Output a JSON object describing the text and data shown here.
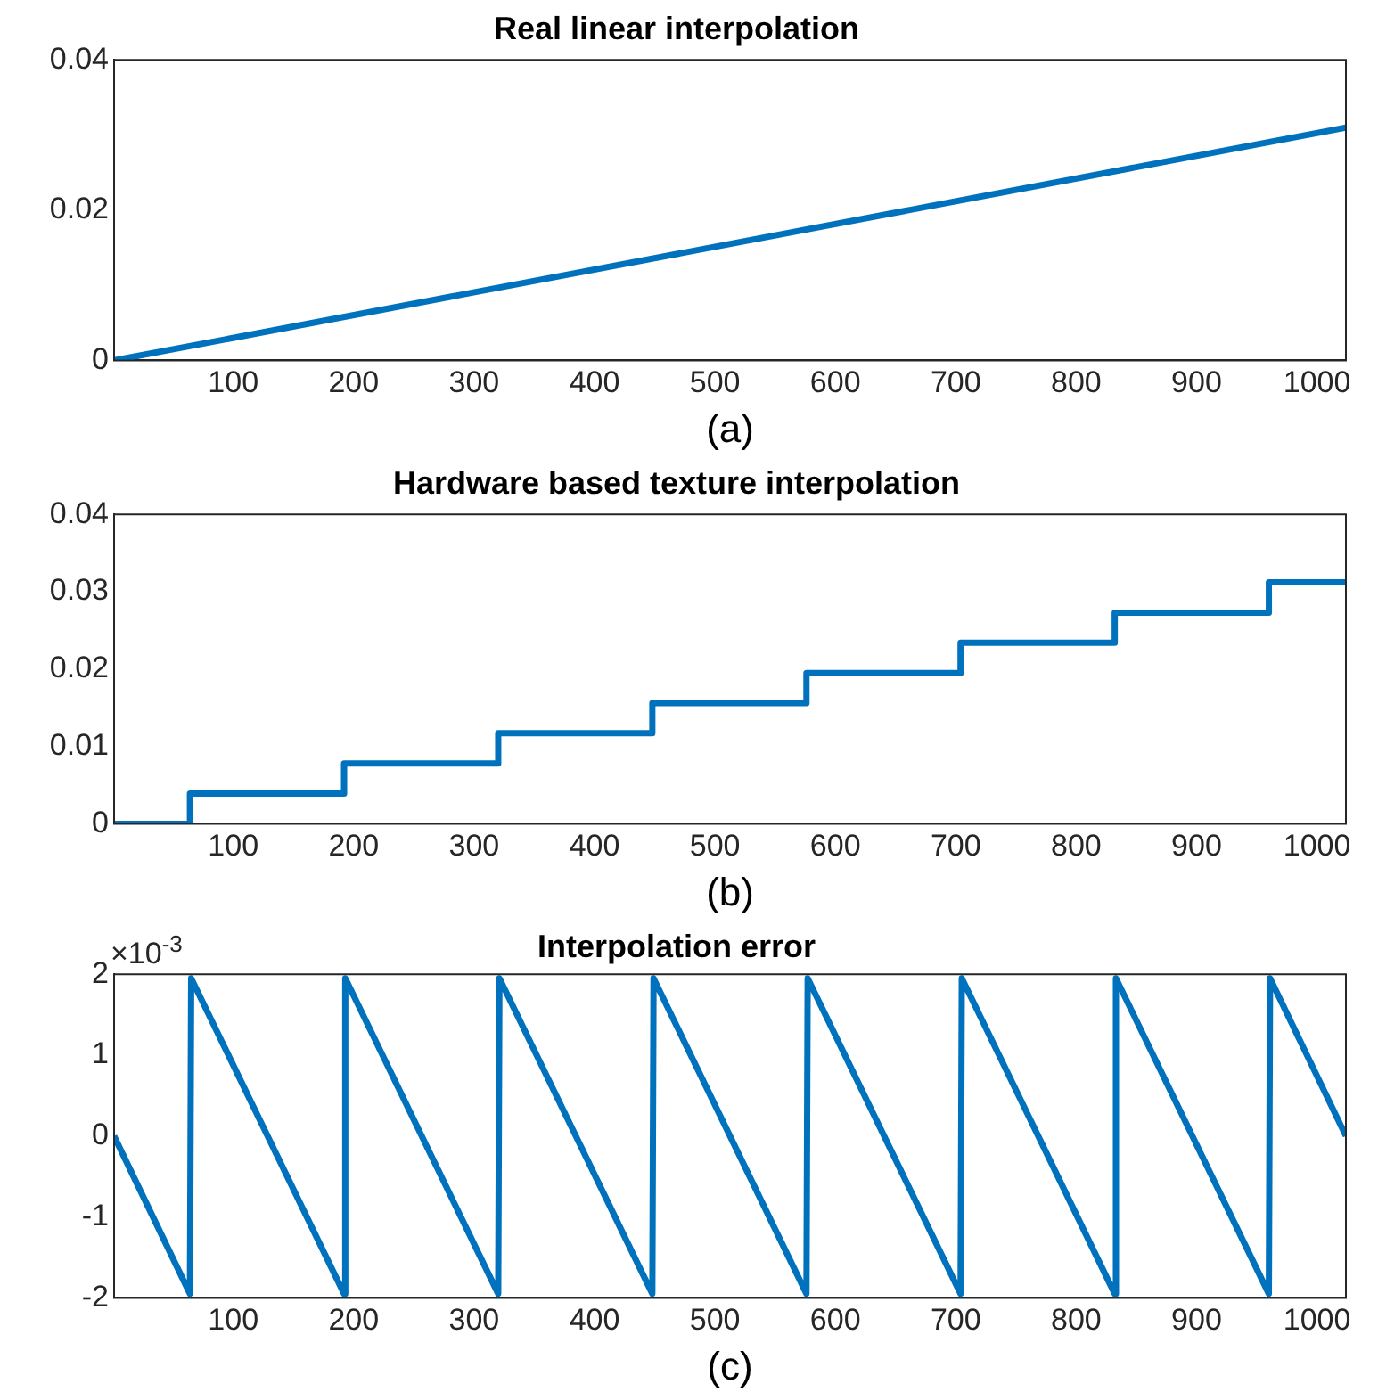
{
  "chart_data": [
    {
      "type": "line",
      "title": "Real linear interpolation",
      "xlabel": "(a)",
      "x": [
        1,
        1024
      ],
      "series": [
        {
          "color": "#0072bd",
          "values": [
            0,
            0.031
          ]
        }
      ],
      "xlim": [
        1,
        1024
      ],
      "xticks": [
        100,
        200,
        300,
        400,
        500,
        600,
        700,
        800,
        900,
        1000
      ],
      "ylim": [
        0,
        0.04
      ],
      "yticks": [
        0,
        0.02,
        0.04
      ],
      "grid": false,
      "legend": false
    },
    {
      "type": "step",
      "title": "Hardware based texture interpolation",
      "xlabel": "(b)",
      "x": [
        1,
        64,
        192,
        320,
        448,
        576,
        704,
        832,
        960,
        1024
      ],
      "series": [
        {
          "color": "#0072bd",
          "values": [
            0,
            0.0039,
            0.0078,
            0.0117,
            0.0156,
            0.0195,
            0.0234,
            0.0273,
            0.0312,
            0.0312
          ]
        }
      ],
      "xlim": [
        1,
        1024
      ],
      "xticks": [
        100,
        200,
        300,
        400,
        500,
        600,
        700,
        800,
        900,
        1000
      ],
      "ylim": [
        0,
        0.04
      ],
      "yticks": [
        0,
        0.01,
        0.02,
        0.03,
        0.04
      ],
      "grid": false,
      "legend": false
    },
    {
      "type": "line",
      "title": "Interpolation error",
      "xlabel": "(c)",
      "annotations": [
        "×10$^{-3}$"
      ],
      "x": [
        1,
        64,
        65,
        192,
        193,
        320,
        321,
        448,
        449,
        576,
        577,
        704,
        705,
        832,
        833,
        960,
        961,
        1024
      ],
      "series": [
        {
          "color": "#0072bd",
          "values": [
            0,
            -1.95,
            1.95,
            -1.95,
            1.95,
            -1.95,
            1.95,
            -1.95,
            1.95,
            -1.95,
            1.95,
            -1.95,
            1.95,
            -1.95,
            1.95,
            -1.95,
            1.95,
            0
          ]
        }
      ],
      "xlim": [
        1,
        1024
      ],
      "xticks": [
        100,
        200,
        300,
        400,
        500,
        600,
        700,
        800,
        900,
        1000
      ],
      "ylim": [
        -2,
        2
      ],
      "yticks": [
        -2,
        -1,
        0,
        1,
        2
      ],
      "grid": false,
      "legend": false
    }
  ]
}
